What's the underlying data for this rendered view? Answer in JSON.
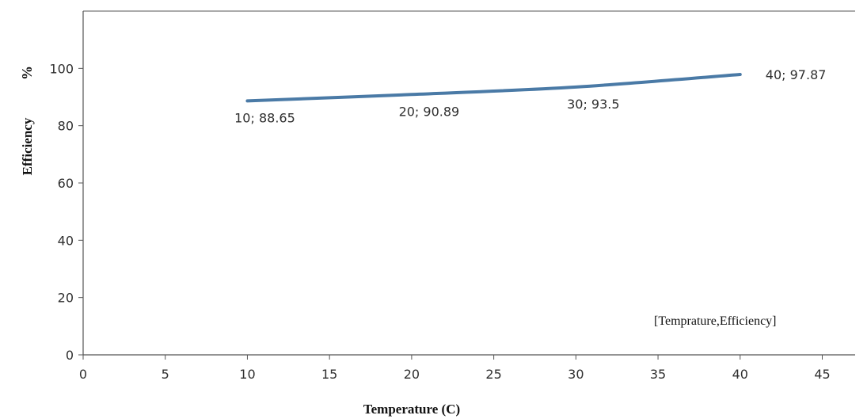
{
  "chart_data": {
    "type": "line",
    "title": "",
    "xlabel": "Temperature (C)",
    "ylabel": "Efficiency",
    "ylabel_unit": "%",
    "annotation": "[Temprature,Efficiency]",
    "xlim": [
      0,
      47
    ],
    "ylim": [
      0,
      120
    ],
    "xticks": [
      0,
      5,
      10,
      15,
      20,
      25,
      30,
      35,
      40,
      45
    ],
    "yticks": [
      0,
      20,
      40,
      60,
      80,
      100
    ],
    "grid": false,
    "legend": "none",
    "series": [
      {
        "color": "#4a7aa6",
        "points": [
          {
            "x": 10,
            "y": 88.65,
            "label": "10; 88.65"
          },
          {
            "x": 20,
            "y": 90.89,
            "label": "20; 90.89"
          },
          {
            "x": 30,
            "y": 93.5,
            "label": "30; 93.5"
          },
          {
            "x": 40,
            "y": 97.87,
            "label": "40; 97.87"
          }
        ]
      }
    ]
  }
}
